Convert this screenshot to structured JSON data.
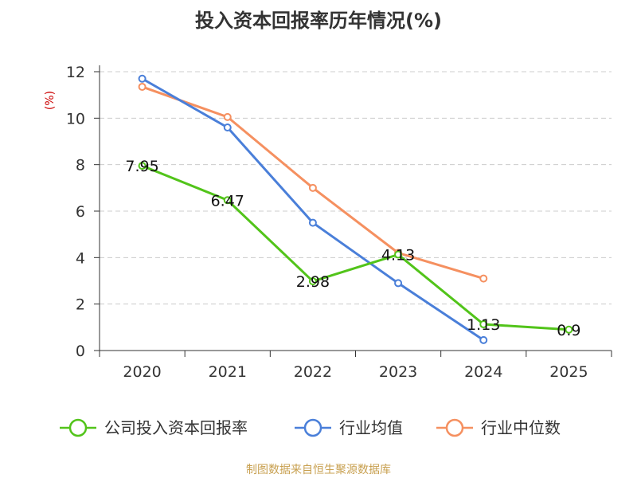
{
  "title": "投入资本回报率历年情况(%)",
  "unit_label": "(%)",
  "source": "制图数据来自恒生聚源数据库",
  "chart_data": {
    "type": "line",
    "title": "投入资本回报率历年情况(%)",
    "xlabel": "",
    "ylabel": "(%)",
    "categories": [
      "2020",
      "2021",
      "2022",
      "2023",
      "2024",
      "2025"
    ],
    "ylim": [
      0,
      12
    ],
    "yticks": [
      0,
      2,
      4,
      6,
      8,
      10,
      12
    ],
    "grid": true,
    "legend_position": "bottom",
    "series": [
      {
        "name": "公司投入资本回报率",
        "color": "#52c41a",
        "values": [
          7.95,
          6.47,
          2.98,
          4.13,
          1.13,
          0.9
        ],
        "labels": [
          "7.95",
          "6.47",
          "2.98",
          "4.13",
          "1.13",
          "0.9"
        ]
      },
      {
        "name": "行业均值",
        "color": "#4a7fd9",
        "values": [
          11.7,
          9.6,
          5.5,
          2.9,
          0.45,
          null
        ],
        "labels": []
      },
      {
        "name": "行业中位数",
        "color": "#f59060",
        "values": [
          11.35,
          10.05,
          7.0,
          4.2,
          3.1,
          null
        ],
        "labels": []
      }
    ]
  }
}
